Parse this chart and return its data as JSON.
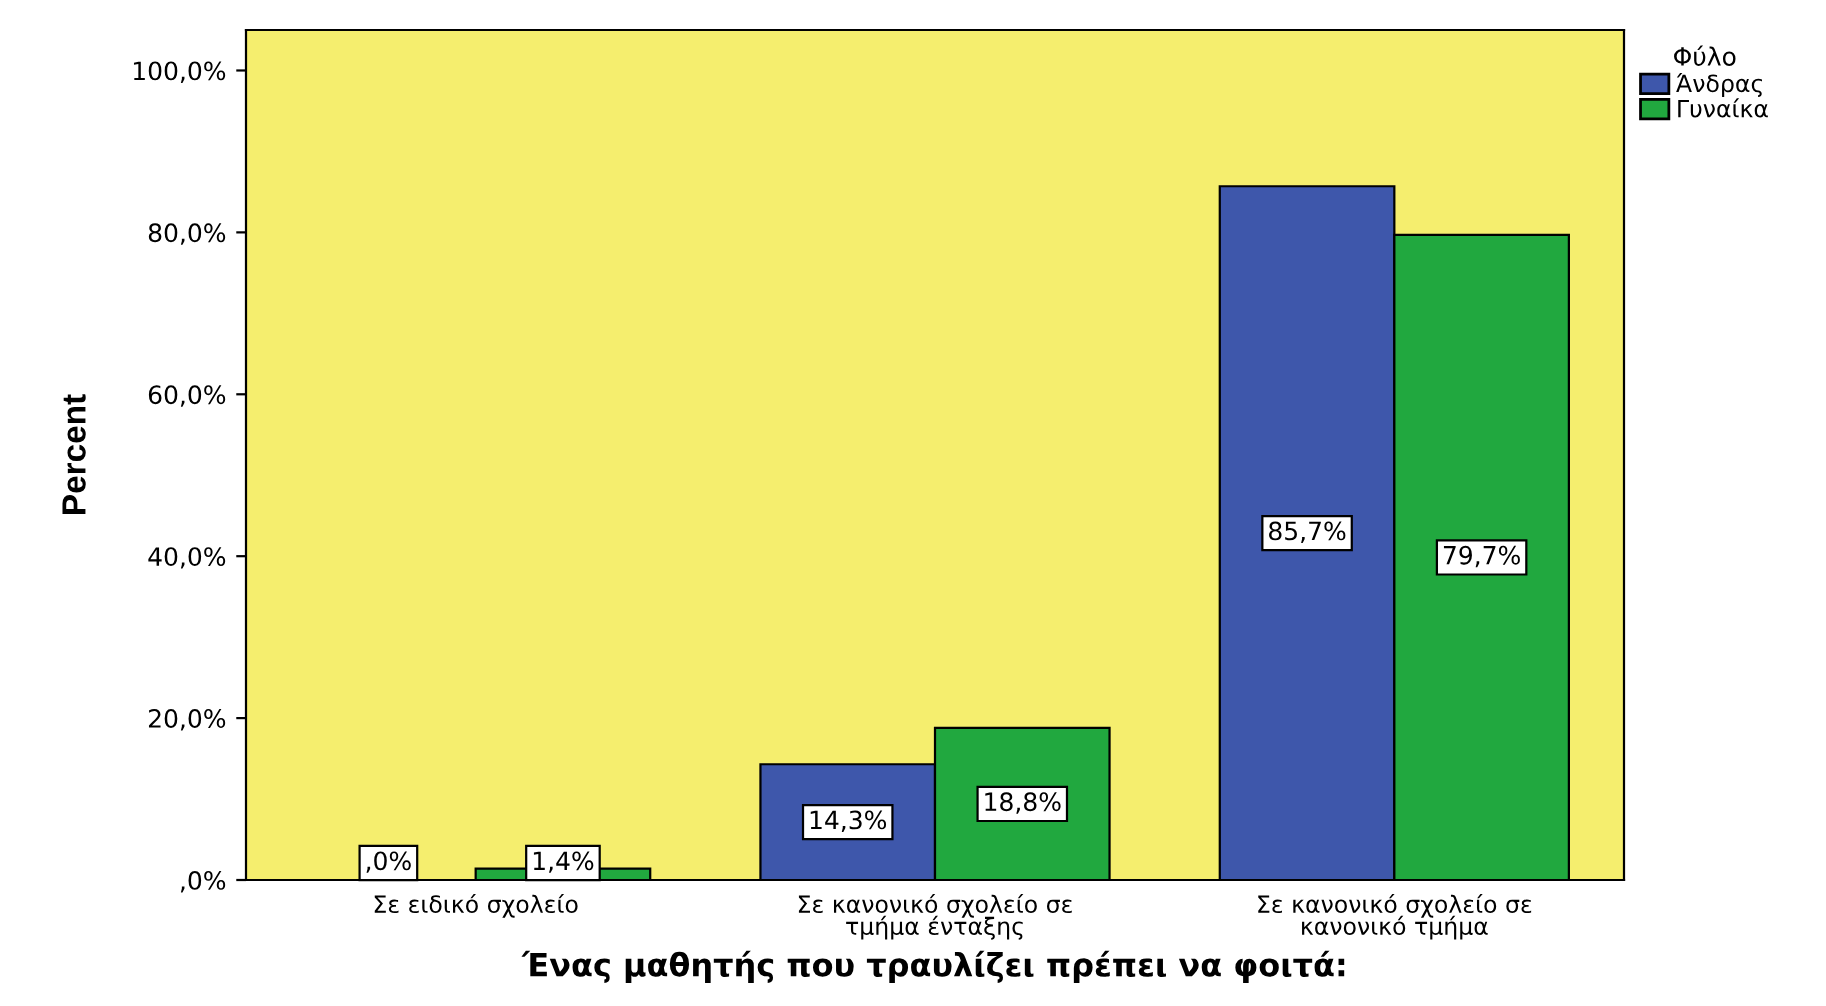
{
  "chart_data": {
    "type": "bar",
    "xlabel": "Ένας μαθητής που τραυλίζει πρέπει να φοιτά:",
    "ylabel": "Percent",
    "legend_title": "Φύλο",
    "legend": "top right",
    "grid": false,
    "categories": [
      "Σε ειδικό σχολείο",
      "Σε κανονικό σχολείο σε\nτμήμα ένταξης",
      "Σε κανονικό σχολείο σε\nκανονικό τμήμα"
    ],
    "series": [
      {
        "name": "Άνδρας",
        "color": "#3e57ab",
        "values": [
          0.0,
          14.3,
          85.7
        ],
        "value_labels": [
          ",0%",
          "14,3%",
          "85,7%"
        ]
      },
      {
        "name": "Γυναίκα",
        "color": "#21a83f",
        "values": [
          1.4,
          18.8,
          79.7
        ],
        "value_labels": [
          "1,4%",
          "18,8%",
          "79,7%"
        ]
      }
    ],
    "ylim": [
      0,
      105
    ],
    "yticks": [
      {
        "value": 0,
        "label": ",0%"
      },
      {
        "value": 20,
        "label": "20,0%"
      },
      {
        "value": 40,
        "label": "40,0%"
      },
      {
        "value": 60,
        "label": "60,0%"
      },
      {
        "value": 80,
        "label": "80,0%"
      },
      {
        "value": 100,
        "label": "100,0%"
      }
    ]
  }
}
